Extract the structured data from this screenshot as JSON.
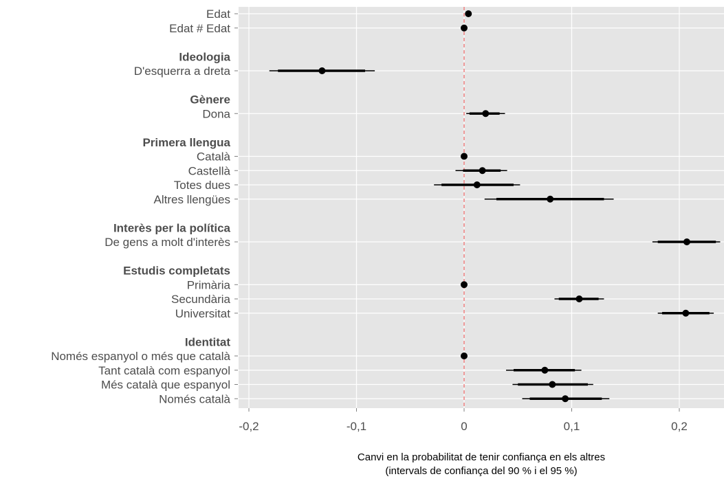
{
  "chart_data": {
    "type": "scatter",
    "subtype": "coefficient-plot-with-90-and-95-percent-intervals",
    "xlabel_line1": "Canvi en la probabilitat de tenir confiança en els altres",
    "xlabel_line2": "(intervals de confiança del 90 % i el 95 %)",
    "xlim": [
      -0.2,
      0.24
    ],
    "xticks": [
      -0.2,
      -0.1,
      0,
      0.1,
      0.2
    ],
    "xtick_labels": [
      "-0,2",
      "-0,1",
      "0",
      "0,1",
      "0,2"
    ],
    "reference_line": 0,
    "grid": true,
    "colors": {
      "panel": "#e5e5e5",
      "grid": "#ffffff",
      "reference": "#f08080",
      "marks": "#000000",
      "labels": "#4d4d4d"
    },
    "rows": [
      {
        "kind": "term",
        "label": "Edat",
        "estimate": 0.004,
        "ci90": null,
        "ci95": null
      },
      {
        "kind": "term",
        "label": "Edat # Edat",
        "estimate": 0.0,
        "ci90": null,
        "ci95": null
      },
      {
        "kind": "spacer"
      },
      {
        "kind": "group",
        "label": "Ideologia"
      },
      {
        "kind": "term",
        "label": "D'esquerra a dreta",
        "estimate": -0.132,
        "ci90": [
          -0.173,
          -0.092
        ],
        "ci95": [
          -0.181,
          -0.083
        ]
      },
      {
        "kind": "spacer"
      },
      {
        "kind": "group",
        "label": "Gènere"
      },
      {
        "kind": "term",
        "label": "Dona",
        "estimate": 0.02,
        "ci90": [
          0.005,
          0.033
        ],
        "ci95": [
          0.002,
          0.038
        ]
      },
      {
        "kind": "spacer"
      },
      {
        "kind": "group",
        "label": "Primera llengua"
      },
      {
        "kind": "term",
        "label": "Català",
        "estimate": 0.0,
        "ci90": null,
        "ci95": null
      },
      {
        "kind": "term",
        "label": "Castellà",
        "estimate": 0.017,
        "ci90": [
          -0.001,
          0.034
        ],
        "ci95": [
          -0.008,
          0.04
        ]
      },
      {
        "kind": "term",
        "label": "Totes dues",
        "estimate": 0.012,
        "ci90": [
          -0.021,
          0.046
        ],
        "ci95": [
          -0.028,
          0.052
        ]
      },
      {
        "kind": "term",
        "label": "Altres llengües",
        "estimate": 0.08,
        "ci90": [
          0.03,
          0.13
        ],
        "ci95": [
          0.019,
          0.139
        ]
      },
      {
        "kind": "spacer"
      },
      {
        "kind": "group",
        "label": "Interès per la política"
      },
      {
        "kind": "term",
        "label": "De gens a molt d'interès",
        "estimate": 0.207,
        "ci90": [
          0.18,
          0.234
        ],
        "ci95": [
          0.175,
          0.238
        ]
      },
      {
        "kind": "spacer"
      },
      {
        "kind": "group",
        "label": "Estudis completats"
      },
      {
        "kind": "term",
        "label": "Primària",
        "estimate": 0.0,
        "ci90": null,
        "ci95": null
      },
      {
        "kind": "term",
        "label": "Secundària",
        "estimate": 0.107,
        "ci90": [
          0.088,
          0.125
        ],
        "ci95": [
          0.084,
          0.13
        ]
      },
      {
        "kind": "term",
        "label": "Universitat",
        "estimate": 0.206,
        "ci90": [
          0.184,
          0.228
        ],
        "ci95": [
          0.18,
          0.232
        ]
      },
      {
        "kind": "spacer"
      },
      {
        "kind": "group",
        "label": "Identitat"
      },
      {
        "kind": "term",
        "label": "Només espanyol o més que català",
        "estimate": 0.0,
        "ci90": null,
        "ci95": null
      },
      {
        "kind": "term",
        "label": "Tant català com espanyol",
        "estimate": 0.075,
        "ci90": [
          0.046,
          0.103
        ],
        "ci95": [
          0.039,
          0.109
        ]
      },
      {
        "kind": "term",
        "label": "Més català que espanyol",
        "estimate": 0.082,
        "ci90": [
          0.05,
          0.115
        ],
        "ci95": [
          0.045,
          0.12
        ]
      },
      {
        "kind": "term",
        "label": "Només català",
        "estimate": 0.094,
        "ci90": [
          0.061,
          0.128
        ],
        "ci95": [
          0.054,
          0.135
        ]
      }
    ]
  }
}
